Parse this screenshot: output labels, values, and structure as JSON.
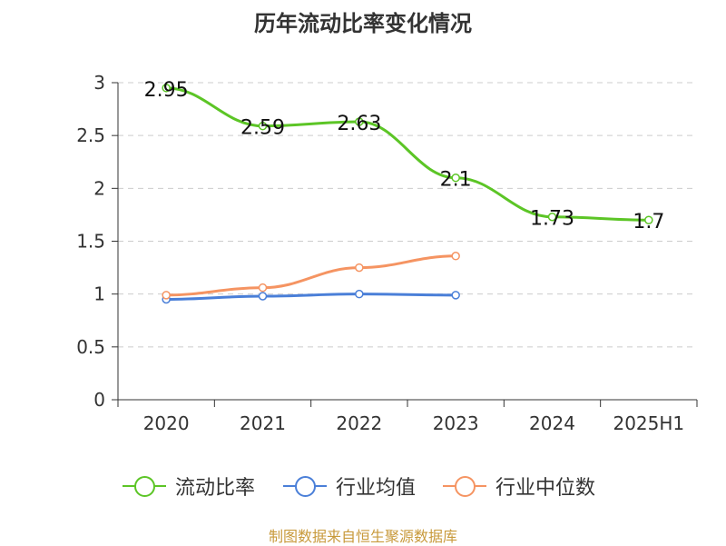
{
  "chart_data": {
    "type": "line",
    "title": "历年流动比率变化情况",
    "categories": [
      "2020",
      "2021",
      "2022",
      "2023",
      "2024",
      "2025H1"
    ],
    "ylim": [
      0,
      3
    ],
    "yticks": [
      "0",
      "0.5",
      "1",
      "1.5",
      "2",
      "2.5",
      "3"
    ],
    "grid": true,
    "legend_position": "bottom",
    "series": [
      {
        "name": "流动比率",
        "color": "#5cc526",
        "values": [
          2.95,
          2.59,
          2.63,
          2.1,
          1.73,
          1.7
        ],
        "labels": [
          "2.95",
          "2.59",
          "2.63",
          "2.1",
          "1.73",
          "1.7"
        ]
      },
      {
        "name": "行业均值",
        "color": "#4a7fd8",
        "values": [
          0.95,
          0.98,
          1.0,
          0.99,
          null,
          null
        ]
      },
      {
        "name": "行业中位数",
        "color": "#f59462",
        "values": [
          0.99,
          1.06,
          1.25,
          1.36,
          null,
          null
        ]
      }
    ]
  },
  "source_note": "制图数据来自恒生聚源数据库"
}
